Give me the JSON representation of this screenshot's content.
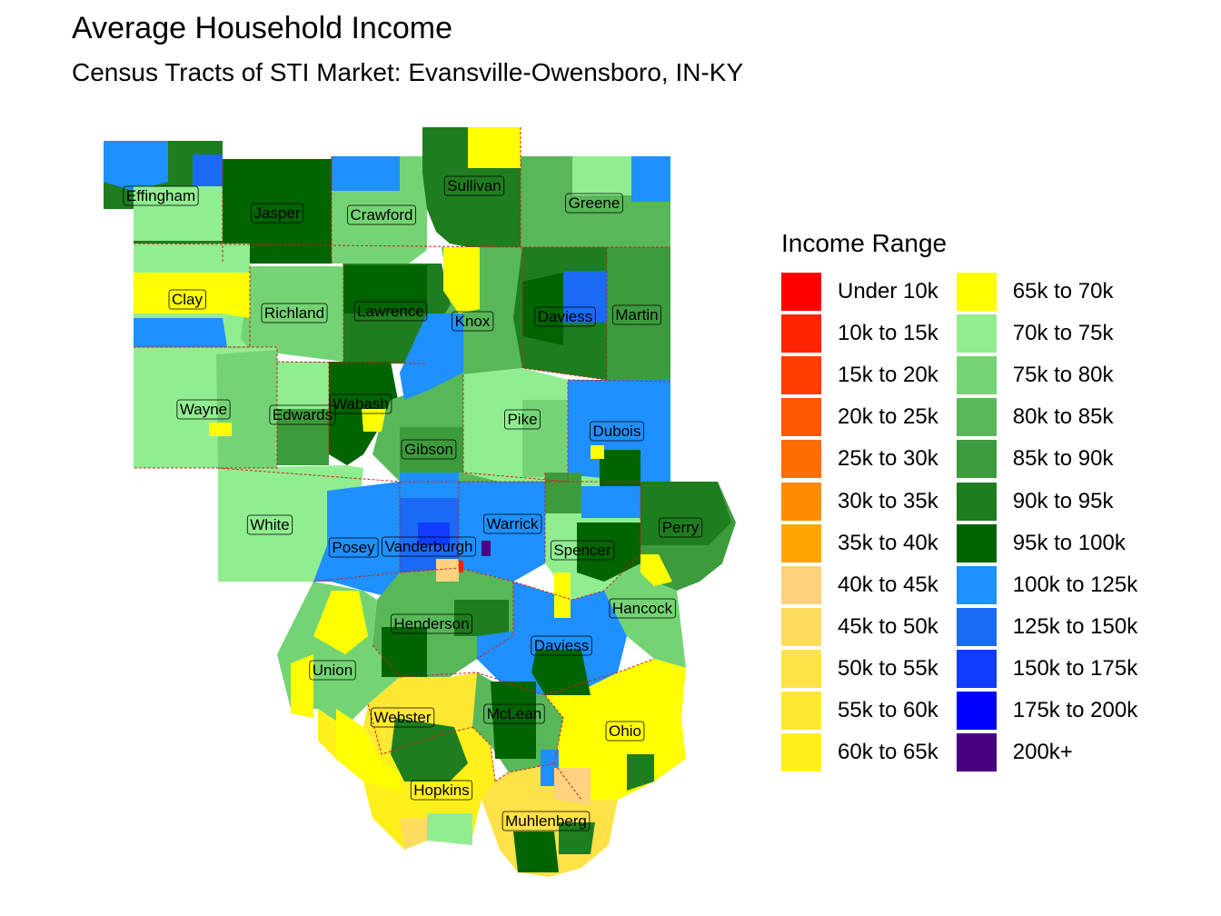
{
  "title": "Average Household Income",
  "subtitle": "Census Tracts of STI Market: Evansville-Owensboro, IN-KY",
  "legend": {
    "title": "Income Range",
    "items": [
      {
        "label": "Under 10k",
        "color": "#FF0000"
      },
      {
        "label": "10k to 15k",
        "color": "#FF2400"
      },
      {
        "label": "15k to 20k",
        "color": "#FF3D00"
      },
      {
        "label": "20k to 25k",
        "color": "#FF5600"
      },
      {
        "label": "25k to 30k",
        "color": "#FF6E00"
      },
      {
        "label": "30k to 35k",
        "color": "#FF8C00"
      },
      {
        "label": "35k to 40k",
        "color": "#FFA500"
      },
      {
        "label": "40k to 45k",
        "color": "#FFD27F"
      },
      {
        "label": "45k to 50k",
        "color": "#FFDC5E"
      },
      {
        "label": "50k to 55k",
        "color": "#FFE247"
      },
      {
        "label": "55k to 60k",
        "color": "#FFE833"
      },
      {
        "label": "60k to 65k",
        "color": "#FFF01A"
      },
      {
        "label": "65k to 70k",
        "color": "#FFFF00"
      },
      {
        "label": "70k to 75k",
        "color": "#90EE90"
      },
      {
        "label": "75k to 80k",
        "color": "#74D474"
      },
      {
        "label": "80k to 85k",
        "color": "#58B758"
      },
      {
        "label": "85k to 90k",
        "color": "#3C9C3C"
      },
      {
        "label": "90k to 95k",
        "color": "#1E7D1E"
      },
      {
        "label": "95k to 100k",
        "color": "#006400"
      },
      {
        "label": "100k to 125k",
        "color": "#1E90FF"
      },
      {
        "label": "125k to 150k",
        "color": "#1A6AF5"
      },
      {
        "label": "150k to 175k",
        "color": "#0F3CFF"
      },
      {
        "label": "175k to 200k",
        "color": "#0000FF"
      },
      {
        "label": "200k+",
        "color": "#4B0082"
      }
    ]
  },
  "counties": [
    {
      "name": "Effingham",
      "state": "IL",
      "color": "#1E7D1E"
    },
    {
      "name": "Jasper",
      "state": "IL",
      "color": "#006400"
    },
    {
      "name": "Crawford",
      "state": "IL",
      "color": "#74D474"
    },
    {
      "name": "Sullivan",
      "state": "IN",
      "color": "#1E7D1E"
    },
    {
      "name": "Greene",
      "state": "IN",
      "color": "#58B758"
    },
    {
      "name": "Clay",
      "state": "IL",
      "color": "#90EE90"
    },
    {
      "name": "Richland",
      "state": "IL",
      "color": "#74D474"
    },
    {
      "name": "Lawrence",
      "state": "IL",
      "color": "#1E7D1E"
    },
    {
      "name": "Knox",
      "state": "IN",
      "color": "#58B758"
    },
    {
      "name": "Daviess",
      "state": "IN",
      "color": "#1E7D1E"
    },
    {
      "name": "Martin",
      "state": "IN",
      "color": "#3C9C3C"
    },
    {
      "name": "Wayne",
      "state": "IL",
      "color": "#90EE90"
    },
    {
      "name": "Edwards",
      "state": "IL",
      "color": "#90EE90"
    },
    {
      "name": "Wabash",
      "state": "IL",
      "color": "#006400"
    },
    {
      "name": "Pike",
      "state": "IN",
      "color": "#90EE90"
    },
    {
      "name": "Dubois",
      "state": "IN",
      "color": "#1E90FF"
    },
    {
      "name": "Gibson",
      "state": "IN",
      "color": "#58B758"
    },
    {
      "name": "White",
      "state": "IL",
      "color": "#90EE90"
    },
    {
      "name": "Posey",
      "state": "IN",
      "color": "#1E90FF"
    },
    {
      "name": "Vanderburgh",
      "state": "IN",
      "color": "#1A6AF5"
    },
    {
      "name": "Warrick",
      "state": "IN",
      "color": "#1E90FF"
    },
    {
      "name": "Spencer",
      "state": "IN",
      "color": "#90EE90"
    },
    {
      "name": "Perry",
      "state": "IN",
      "color": "#3C9C3C"
    },
    {
      "name": "Hancock",
      "state": "KY",
      "color": "#74D474"
    },
    {
      "name": "Henderson",
      "state": "KY",
      "color": "#58B758"
    },
    {
      "name": "Daviess",
      "state": "KY",
      "color": "#1E90FF"
    },
    {
      "name": "Union",
      "state": "KY",
      "color": "#74D474"
    },
    {
      "name": "Webster",
      "state": "KY",
      "color": "#FFE833"
    },
    {
      "name": "McLean",
      "state": "KY",
      "color": "#58B758"
    },
    {
      "name": "Ohio",
      "state": "KY",
      "color": "#FFFF00"
    },
    {
      "name": "Hopkins",
      "state": "KY",
      "color": "#FFF01A"
    },
    {
      "name": "Muhlenberg",
      "state": "KY",
      "color": "#FFE247"
    }
  ]
}
